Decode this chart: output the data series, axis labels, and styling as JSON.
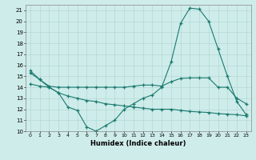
{
  "xlabel": "Humidex (Indice chaleur)",
  "line_color": "#1a7a6e",
  "bg_color": "#ceecea",
  "grid_color": "#aed4d0",
  "ylim": [
    10,
    21.5
  ],
  "xlim": [
    -0.5,
    23.5
  ],
  "yticks": [
    10,
    11,
    12,
    13,
    14,
    15,
    16,
    17,
    18,
    19,
    20,
    21
  ],
  "xticks": [
    0,
    1,
    2,
    3,
    4,
    5,
    6,
    7,
    8,
    9,
    10,
    11,
    12,
    13,
    14,
    15,
    16,
    17,
    18,
    19,
    20,
    21,
    22,
    23
  ],
  "line3_x": [
    0,
    1,
    2,
    3,
    4,
    5,
    6,
    7,
    8,
    9,
    10,
    11,
    12,
    13,
    14,
    15,
    16,
    17,
    18,
    19,
    20,
    21,
    22,
    23
  ],
  "line3_y": [
    15.5,
    14.7,
    14.0,
    13.5,
    12.2,
    11.9,
    10.4,
    10.0,
    10.5,
    11.0,
    12.0,
    12.5,
    13.0,
    13.3,
    14.0,
    16.3,
    19.8,
    21.2,
    21.1,
    20.0,
    17.5,
    15.0,
    12.7,
    11.5
  ],
  "line1_x": [
    0,
    1,
    2,
    3,
    4,
    5,
    6,
    7,
    8,
    9,
    10,
    11,
    12,
    13,
    14,
    15,
    16,
    17,
    18,
    19,
    20,
    21,
    22,
    23
  ],
  "line1_y": [
    15.3,
    14.7,
    14.1,
    14.0,
    14.0,
    14.0,
    14.0,
    14.0,
    14.0,
    14.0,
    14.0,
    14.1,
    14.2,
    14.2,
    14.1,
    14.5,
    14.8,
    14.85,
    14.85,
    14.85,
    14.0,
    14.0,
    13.0,
    12.5
  ],
  "line2_x": [
    0,
    1,
    2,
    3,
    4,
    5,
    6,
    7,
    8,
    9,
    10,
    11,
    12,
    13,
    14,
    15,
    16,
    17,
    18,
    19,
    20,
    21,
    22,
    23
  ],
  "line2_y": [
    14.3,
    14.1,
    14.0,
    13.5,
    13.2,
    13.0,
    12.8,
    12.7,
    12.5,
    12.4,
    12.3,
    12.2,
    12.1,
    12.0,
    12.0,
    12.0,
    11.9,
    11.8,
    11.75,
    11.7,
    11.6,
    11.55,
    11.5,
    11.4
  ]
}
